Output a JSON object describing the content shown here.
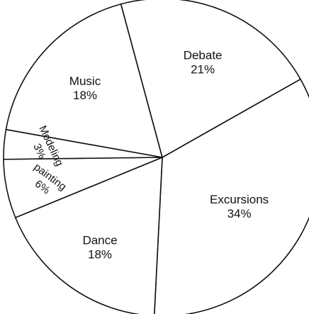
{
  "chart_data": {
    "type": "pie",
    "slices": [
      {
        "label": "Excursions",
        "value": 34,
        "value_label": "34%"
      },
      {
        "label": "Dance",
        "value": 18,
        "value_label": "18%"
      },
      {
        "label": "painting",
        "value": 6,
        "value_label": "6%"
      },
      {
        "label": "Modeling",
        "value": 3,
        "value_label": "3%"
      },
      {
        "label": "Music",
        "value": 18,
        "value_label": "18%"
      },
      {
        "label": "Debate",
        "value": 21,
        "value_label": "21%"
      }
    ],
    "start_angle_deg": -29.5,
    "direction": "clockwise",
    "legend": "none",
    "colors": {
      "fill": "#ffffff",
      "stroke": "#111111",
      "text": "#111111"
    }
  }
}
